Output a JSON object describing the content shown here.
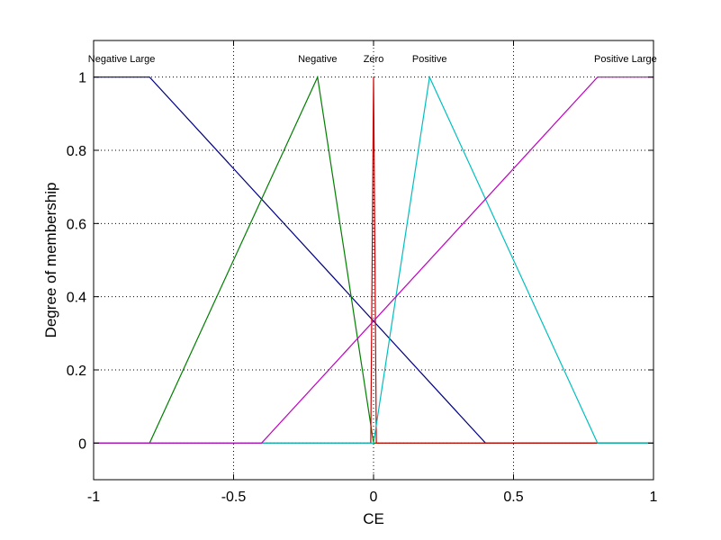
{
  "chart_data": {
    "type": "line",
    "title": "",
    "xlabel": "CE",
    "ylabel": "Degree of membership",
    "xlim": [
      -1,
      1
    ],
    "ylim": [
      -0.1,
      1.1
    ],
    "grid": true,
    "grid_style": "dotted",
    "x_ticks": [
      -1,
      -0.5,
      0,
      0.5,
      1
    ],
    "x_tick_labels": [
      "-1",
      "-0.5",
      "0",
      "0.5",
      "1"
    ],
    "y_ticks": [
      0,
      0.2,
      0.4,
      0.6,
      0.8,
      1
    ],
    "y_tick_labels": [
      "0",
      "0.2",
      "0.4",
      "0.6",
      "0.8",
      "1"
    ],
    "series": [
      {
        "name": "Negative Large",
        "color": "#00007f",
        "x": [
          -1,
          -0.8,
          0.4,
          1
        ],
        "y": [
          1,
          1,
          0,
          0
        ]
      },
      {
        "name": "Negative",
        "color": "#007f00",
        "x": [
          -1,
          -0.8,
          -0.2,
          0,
          1
        ],
        "y": [
          0,
          0,
          1,
          0,
          0
        ]
      },
      {
        "name": "Zero",
        "color": "#cc0000",
        "x": [
          -1,
          -0.01,
          0,
          0.01,
          1
        ],
        "y": [
          0,
          0,
          1,
          0,
          0
        ]
      },
      {
        "name": "Positive",
        "color": "#00bfbf",
        "x": [
          -1,
          0,
          0.2,
          0.8,
          1
        ],
        "y": [
          0,
          0,
          1,
          0,
          0
        ]
      },
      {
        "name": "Positive Large",
        "color": "#bf00bf",
        "x": [
          -1,
          -0.4,
          0.8,
          1
        ],
        "y": [
          0,
          0,
          1,
          1
        ]
      }
    ],
    "mf_labels": [
      {
        "text": "Negative Large",
        "x": -0.9
      },
      {
        "text": "Negative",
        "x": -0.2
      },
      {
        "text": "Zero",
        "x": 0
      },
      {
        "text": "Positive",
        "x": 0.2
      },
      {
        "text": "Positive Large",
        "x": 0.9
      }
    ]
  }
}
